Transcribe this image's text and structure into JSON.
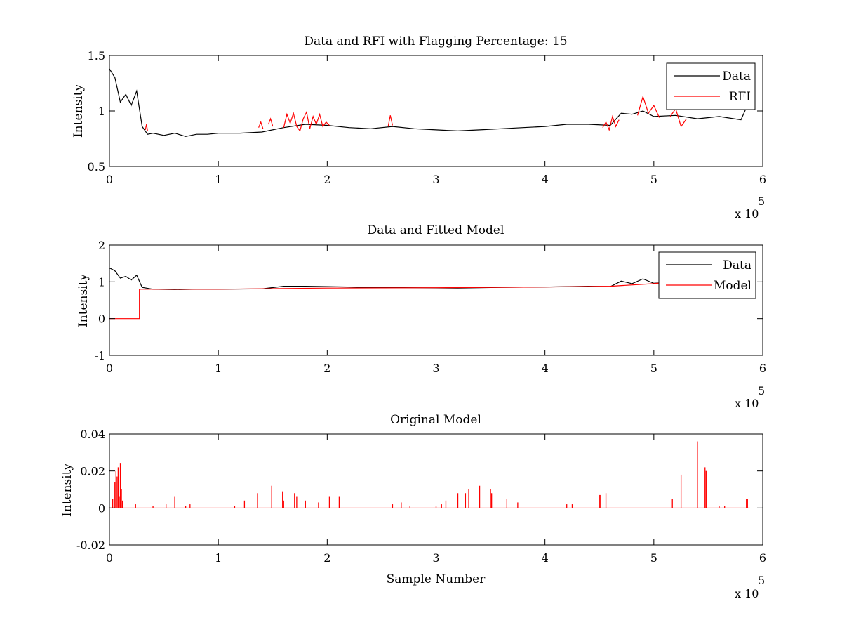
{
  "colors": {
    "data": "#000000",
    "rfi": "#ff0000",
    "model": "#ff0000",
    "axes": "#000000",
    "background": "#ffffff"
  },
  "chart_data": [
    {
      "type": "line",
      "title": "Data and RFI with Flagging Percentage: 15",
      "xlabel": "",
      "ylabel": "Intensity",
      "xlim": [
        0,
        600000
      ],
      "ylim": [
        0.5,
        1.5
      ],
      "xticks": [
        0,
        100000,
        200000,
        300000,
        400000,
        500000,
        600000
      ],
      "xtick_labels": [
        "0",
        "1",
        "2",
        "3",
        "4",
        "5",
        "6"
      ],
      "yticks": [
        0.5,
        1,
        1.5
      ],
      "ytick_labels": [
        "0.5",
        "1",
        "1.5"
      ],
      "x_multiplier": {
        "base": "x 10",
        "exponent": "5"
      },
      "legend": {
        "position": "top-right",
        "entries": [
          {
            "label": "Data",
            "color": "#000000"
          },
          {
            "label": "RFI",
            "color": "#ff0000"
          }
        ]
      },
      "series": [
        {
          "name": "Data",
          "color": "#000000",
          "x": [
            0,
            5000,
            10000,
            15000,
            20000,
            25000,
            30000,
            35000,
            40000,
            50000,
            60000,
            70000,
            80000,
            90000,
            100000,
            120000,
            140000,
            160000,
            180000,
            200000,
            220000,
            240000,
            260000,
            280000,
            300000,
            320000,
            340000,
            360000,
            380000,
            400000,
            420000,
            440000,
            460000,
            470000,
            480000,
            490000,
            500000,
            520000,
            540000,
            560000,
            580000,
            585000
          ],
          "y": [
            1.38,
            1.3,
            1.08,
            1.15,
            1.05,
            1.18,
            0.86,
            0.79,
            0.8,
            0.78,
            0.8,
            0.77,
            0.79,
            0.79,
            0.8,
            0.8,
            0.81,
            0.85,
            0.88,
            0.87,
            0.85,
            0.84,
            0.86,
            0.84,
            0.83,
            0.82,
            0.83,
            0.84,
            0.85,
            0.86,
            0.88,
            0.88,
            0.87,
            0.98,
            0.97,
            1.0,
            0.95,
            0.96,
            0.93,
            0.95,
            0.92,
            1.03
          ]
        },
        {
          "name": "RFI",
          "color": "#ff0000",
          "segments": [
            {
              "x": [
                33000,
                34000,
                35000
              ],
              "y": [
                0.83,
                0.88,
                0.82
              ]
            },
            {
              "x": [
                137000,
                139000,
                141000
              ],
              "y": [
                0.85,
                0.9,
                0.84
              ]
            },
            {
              "x": [
                146000,
                148000,
                150000
              ],
              "y": [
                0.88,
                0.93,
                0.86
              ]
            },
            {
              "x": [
                160000,
                163000,
                166000,
                169000,
                172000,
                175000,
                178000,
                181000,
                184000,
                187000,
                190000,
                193000,
                196000,
                199000,
                202000
              ],
              "y": [
                0.85,
                0.97,
                0.89,
                0.98,
                0.86,
                0.82,
                0.93,
                0.99,
                0.84,
                0.95,
                0.88,
                0.97,
                0.86,
                0.9,
                0.87
              ]
            },
            {
              "x": [
                256000,
                258000,
                260000
              ],
              "y": [
                0.86,
                0.96,
                0.87
              ]
            },
            {
              "x": [
                453000,
                456000,
                459000,
                462000,
                465000,
                468000
              ],
              "y": [
                0.85,
                0.9,
                0.83,
                0.95,
                0.86,
                0.92
              ]
            },
            {
              "x": [
                485000,
                490000,
                495000,
                500000,
                505000
              ],
              "y": [
                0.96,
                1.13,
                0.98,
                1.05,
                0.94
              ]
            },
            {
              "x": [
                515000,
                520000,
                525000,
                530000
              ],
              "y": [
                0.95,
                1.02,
                0.86,
                0.93
              ]
            }
          ]
        }
      ]
    },
    {
      "type": "line",
      "title": "Data and Fitted Model",
      "xlabel": "",
      "ylabel": "Intensity",
      "xlim": [
        0,
        600000
      ],
      "ylim": [
        -1,
        2
      ],
      "xticks": [
        0,
        100000,
        200000,
        300000,
        400000,
        500000,
        600000
      ],
      "xtick_labels": [
        "0",
        "1",
        "2",
        "3",
        "4",
        "5",
        "6"
      ],
      "yticks": [
        -1,
        0,
        1,
        2
      ],
      "ytick_labels": [
        "-1",
        "0",
        "1",
        "2"
      ],
      "x_multiplier": {
        "base": "x 10",
        "exponent": "5"
      },
      "legend": {
        "position": "top-right",
        "entries": [
          {
            "label": "Data",
            "color": "#000000"
          },
          {
            "label": "Model",
            "color": "#ff0000"
          }
        ]
      },
      "series": [
        {
          "name": "Data",
          "color": "#000000",
          "x": [
            0,
            5000,
            10000,
            15000,
            20000,
            25000,
            30000,
            40000,
            60000,
            80000,
            100000,
            140000,
            160000,
            180000,
            200000,
            240000,
            280000,
            320000,
            360000,
            400000,
            440000,
            460000,
            470000,
            480000,
            490000,
            500000,
            510000
          ],
          "y": [
            1.38,
            1.3,
            1.1,
            1.15,
            1.05,
            1.18,
            0.85,
            0.8,
            0.79,
            0.8,
            0.8,
            0.81,
            0.88,
            0.88,
            0.87,
            0.85,
            0.84,
            0.83,
            0.85,
            0.86,
            0.88,
            0.87,
            1.02,
            0.95,
            1.08,
            0.96,
            0.98
          ]
        },
        {
          "name": "Model",
          "color": "#ff0000",
          "x": [
            0,
            27500,
            27500,
            40000,
            100000,
            200000,
            300000,
            400000,
            460000,
            500000,
            510000
          ],
          "y": [
            0.0,
            0.0,
            0.8,
            0.8,
            0.8,
            0.83,
            0.84,
            0.86,
            0.88,
            0.95,
            0.98
          ]
        }
      ]
    },
    {
      "type": "bar",
      "title": "Original Model",
      "xlabel": "Sample Number",
      "ylabel": "Intensity",
      "xlim": [
        0,
        600000
      ],
      "ylim": [
        -0.02,
        0.04
      ],
      "xticks": [
        0,
        100000,
        200000,
        300000,
        400000,
        500000,
        600000
      ],
      "xtick_labels": [
        "0",
        "1",
        "2",
        "3",
        "4",
        "5",
        "6"
      ],
      "yticks": [
        -0.02,
        0,
        0.02,
        0.04
      ],
      "ytick_labels": [
        "-0.02",
        "0",
        "0.02",
        "0.04"
      ],
      "x_multiplier": {
        "base": "x 10",
        "exponent": "5"
      },
      "series": [
        {
          "name": "Model",
          "color": "#ff0000",
          "x": [
            3000,
            5000,
            6000,
            7000,
            8000,
            9000,
            10000,
            11000,
            12000,
            24000,
            40000,
            52000,
            60000,
            70000,
            74000,
            115000,
            124000,
            136000,
            149000,
            159000,
            160000,
            170000,
            172000,
            180000,
            192000,
            202000,
            211000,
            260000,
            268000,
            276000,
            300000,
            305000,
            309000,
            320000,
            327000,
            330000,
            340000,
            350000,
            351000,
            365000,
            375000,
            420000,
            425000,
            450000,
            451000,
            456000,
            517000,
            525000,
            540000,
            547000,
            548000,
            560000,
            565000,
            585000,
            586000
          ],
          "y": [
            0.005,
            0.014,
            0.02,
            0.017,
            0.022,
            0.006,
            0.024,
            0.01,
            0.004,
            0.002,
            0.001,
            0.002,
            0.006,
            0.001,
            0.002,
            0.001,
            0.004,
            0.008,
            0.012,
            0.009,
            0.004,
            0.008,
            0.006,
            0.004,
            0.003,
            0.006,
            0.006,
            0.002,
            0.003,
            0.001,
            0.001,
            0.002,
            0.004,
            0.008,
            0.008,
            0.01,
            0.012,
            0.01,
            0.008,
            0.005,
            0.003,
            0.002,
            0.002,
            0.007,
            0.007,
            0.008,
            0.005,
            0.018,
            0.036,
            0.022,
            0.02,
            0.001,
            0.001,
            0.005,
            0.005
          ]
        }
      ]
    }
  ]
}
